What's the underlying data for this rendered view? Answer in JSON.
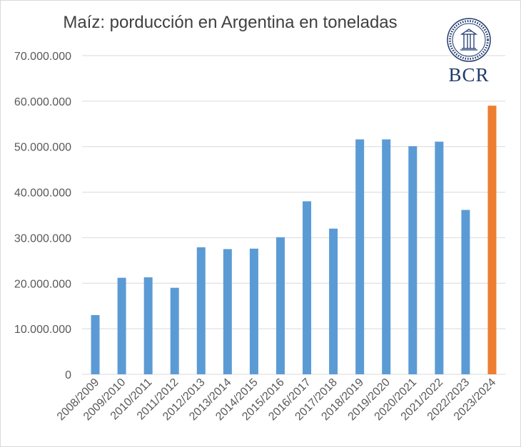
{
  "title": "Maíz: porducción en Argentina en toneladas",
  "logo": {
    "text": "BCR",
    "seal_text": "BOLSA DE COMERCIO DE ROSARIO"
  },
  "colors": {
    "bar": "#5b9bd5",
    "highlight": "#ed7d31",
    "grid": "#d9d9d9",
    "axis_text": "#595959"
  },
  "chart_data": {
    "type": "bar",
    "title": "Maíz: porducción en Argentina en toneladas",
    "xlabel": "",
    "ylabel": "",
    "ylim": [
      0,
      70000000
    ],
    "yticks": [
      "0",
      "10.000.000",
      "20.000.000",
      "30.000.000",
      "40.000.000",
      "50.000.000",
      "60.000.000",
      "70.000.000"
    ],
    "ytick_values": [
      0,
      10000000,
      20000000,
      30000000,
      40000000,
      50000000,
      60000000,
      70000000
    ],
    "grid": true,
    "categories": [
      "2008/2009",
      "2009/2010",
      "2010/2011",
      "2011/2012",
      "2012/2013",
      "2013/2014",
      "2014/2015",
      "2015/2016",
      "2016/2017",
      "2017/2018",
      "2018/2019",
      "2019/2020",
      "2020/2021",
      "2021/2022",
      "2022/2023",
      "2023/2024"
    ],
    "values": [
      13000000,
      21200000,
      21300000,
      19000000,
      27900000,
      27500000,
      27600000,
      30100000,
      38000000,
      32000000,
      51600000,
      51600000,
      50100000,
      51100000,
      36100000,
      59000000
    ],
    "highlight_index": 15
  }
}
